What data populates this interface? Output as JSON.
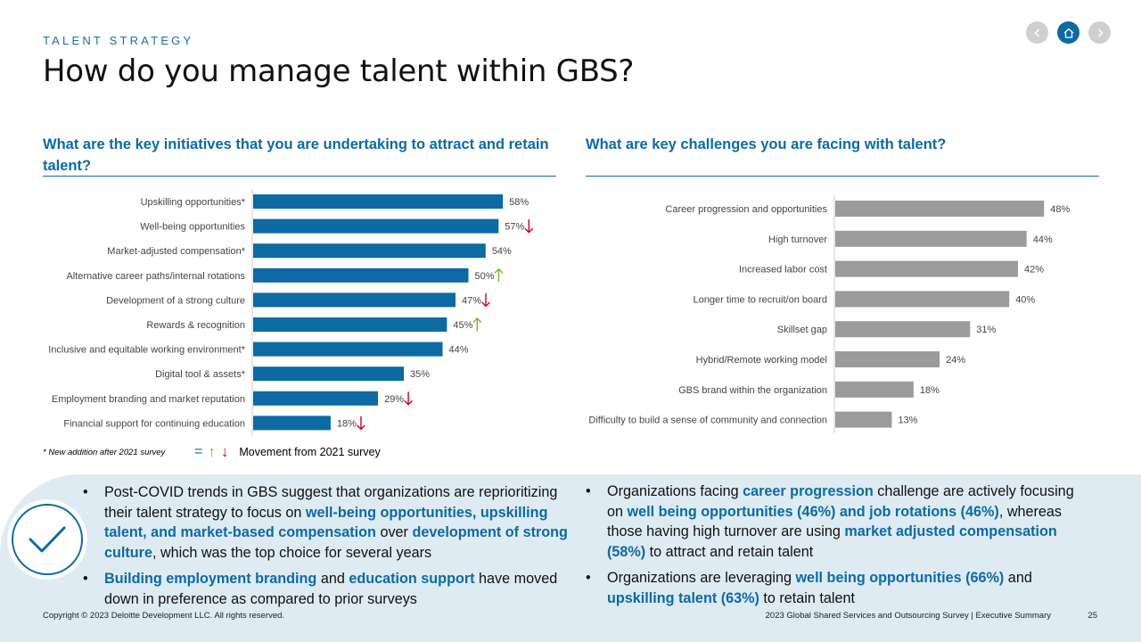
{
  "header": {
    "kicker": "TALENT STRATEGY",
    "title": "How do you manage talent within GBS?"
  },
  "nav": {
    "prev_icon": "chevron-left-icon",
    "home_icon": "home-icon",
    "next_icon": "chevron-right-icon"
  },
  "left": {
    "heading": "What are the key initiatives that you are undertaking to attract and retain talent?"
  },
  "right": {
    "heading": "What are key challenges you are facing with talent?"
  },
  "chart_data": [
    {
      "type": "bar",
      "orientation": "horizontal",
      "categories": [
        "Upskilling opportunities*",
        "Well-being opportunities",
        "Market-adjusted compensation*",
        "Alternative career paths/internal rotations",
        "Development of a strong culture",
        "Rewards & recognition",
        "Inclusive and equitable working environment*",
        "Digital tool & assets*",
        "Employment branding and market reputation",
        "Financial support for continuing education"
      ],
      "values": [
        58,
        57,
        54,
        50,
        47,
        45,
        44,
        35,
        29,
        18
      ],
      "value_labels": [
        "58%",
        "57%",
        "54%",
        "50%",
        "47%",
        "45%",
        "44%",
        "35%",
        "29%",
        "18%"
      ],
      "movement": [
        "",
        "down",
        "",
        "up",
        "down",
        "up",
        "",
        "",
        "down",
        "down"
      ],
      "xlim": [
        0,
        100
      ],
      "color": "#0d6aa3",
      "up_color": "#7ab829",
      "down_color": "#d0021b"
    },
    {
      "type": "bar",
      "orientation": "horizontal",
      "categories": [
        "Career progression and opportunities",
        "High turnover",
        "Increased labor cost",
        "Longer time to recruit/on board",
        "Skillset gap",
        "Hybrid/Remote working model",
        "GBS brand within the organization",
        "Difficulty to build a sense of community and connection"
      ],
      "values": [
        48,
        44,
        42,
        40,
        31,
        24,
        18,
        13
      ],
      "value_labels": [
        "48%",
        "44%",
        "42%",
        "40%",
        "31%",
        "24%",
        "18%",
        "13%"
      ],
      "xlim": [
        0,
        100
      ],
      "color": "#9b9b9b"
    }
  ],
  "footnote": "* New addition after 2021 survey",
  "legend": {
    "equal_symbol": "=",
    "up_symbol": "↑",
    "down_symbol": "↓",
    "text": "Movement from 2021 survey"
  },
  "check_icon": "checkmark-icon",
  "left_bullets": {
    "b1": {
      "t1": "Post-COVID trends in GBS suggest that organizations are reprioritizing their talent strategy to focus on ",
      "h1": "well-being opportunities, upskilling talent, and market-based compensation",
      "t2": " over ",
      "h2": "development of strong culture",
      "t3": ", which was the top choice for several years"
    },
    "b2": {
      "h1": "Building employment branding",
      "t1": " and ",
      "h2": "education support",
      "t2": " have moved down in preference as compared to prior surveys"
    }
  },
  "right_bullets": {
    "b1": {
      "t1": "Organizations facing ",
      "h1": "career progression",
      "t2": " challenge are actively focusing on ",
      "h2": "well being opportunities (46%) and job rotations (46%)",
      "t3": ", whereas those having high turnover are using ",
      "h3": "market adjusted compensation (58%)",
      "t4": " to attract and retain talent"
    },
    "b2": {
      "t1": "Organizations are leveraging ",
      "h1": "well being opportunities (66%)",
      "t2": " and ",
      "h2": "upskilling talent (63%)",
      "t3": " to retain talent"
    }
  },
  "footer": {
    "copyright": "Copyright © 2023 Deloitte Development LLC. All rights reserved.",
    "report": "2023 Global Shared Services and Outsourcing Survey | Executive Summary",
    "page": "25"
  }
}
